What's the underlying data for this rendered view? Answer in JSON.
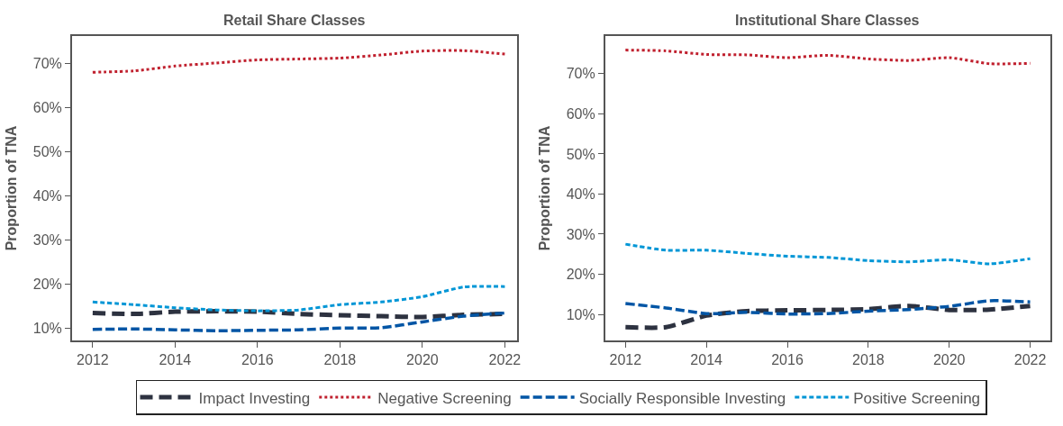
{
  "chart_data": [
    {
      "type": "line",
      "title": "Retail Share Classes",
      "ylabel": "Proportion of TNA",
      "x": [
        2012,
        2013,
        2014,
        2015,
        2016,
        2017,
        2018,
        2019,
        2020,
        2021,
        2022
      ],
      "xlim": [
        2011.5,
        2022.3
      ],
      "xticks": [
        2012,
        2014,
        2016,
        2018,
        2020,
        2022
      ],
      "ylim": [
        7.3,
        76.2
      ],
      "yticks": [
        {
          "value": 10,
          "label": "10%"
        },
        {
          "value": 20,
          "label": "20%"
        },
        {
          "value": 30,
          "label": "30%"
        },
        {
          "value": 40,
          "label": "40%"
        },
        {
          "value": 50,
          "label": "50%"
        },
        {
          "value": 60,
          "label": "60%"
        },
        {
          "value": 70,
          "label": "70%"
        }
      ],
      "legend": "bottom",
      "marker": "none",
      "series": [
        {
          "name": "Impact Investing",
          "color": "#2d3240",
          "line_style": "dashed",
          "values": [
            13.5,
            13.3,
            13.8,
            13.9,
            13.8,
            13.3,
            13.0,
            12.8,
            12.6,
            13.1,
            13.3
          ]
        },
        {
          "name": "Negative Screening",
          "color": "#c0202e",
          "line_style": "dotted",
          "values": [
            68.0,
            68.3,
            69.4,
            70.1,
            70.8,
            71.0,
            71.2,
            71.9,
            72.8,
            72.9,
            72.1
          ]
        },
        {
          "name": "Socially Responsible Investing",
          "color": "#0055a5",
          "line_style": "dashed",
          "values": [
            9.8,
            9.9,
            9.7,
            9.5,
            9.6,
            9.7,
            10.1,
            10.2,
            11.5,
            12.8,
            13.5
          ]
        },
        {
          "name": "Positive Screening",
          "color": "#0096d6",
          "line_style": "dashed",
          "values": [
            16.0,
            15.4,
            14.7,
            14.2,
            14.0,
            14.2,
            15.4,
            16.0,
            17.2,
            19.4,
            19.5
          ]
        }
      ]
    },
    {
      "type": "line",
      "title": "Institutional Share Classes",
      "ylabel": "Proportion of TNA",
      "x": [
        2012,
        2013,
        2014,
        2015,
        2016,
        2017,
        2018,
        2019,
        2020,
        2021,
        2022
      ],
      "xlim": [
        2011.5,
        2022.5
      ],
      "xticks": [
        2012,
        2014,
        2016,
        2018,
        2020,
        2022
      ],
      "ylim": [
        3.5,
        79.4
      ],
      "yticks": [
        {
          "value": 10,
          "label": "10%"
        },
        {
          "value": 20,
          "label": "20%"
        },
        {
          "value": 30,
          "label": "30%"
        },
        {
          "value": 40,
          "label": "40%"
        },
        {
          "value": 50,
          "label": "50%"
        },
        {
          "value": 60,
          "label": "60%"
        },
        {
          "value": 70,
          "label": "70%"
        }
      ],
      "legend": "bottom",
      "marker": "none",
      "series": [
        {
          "name": "Impact Investing",
          "color": "#2d3240",
          "line_style": "dashed",
          "values": [
            6.8,
            6.8,
            9.7,
            10.8,
            11.0,
            11.1,
            11.3,
            12.1,
            11.1,
            11.2,
            12.1
          ]
        },
        {
          "name": "Negative Screening",
          "color": "#c0202e",
          "line_style": "dotted",
          "values": [
            75.9,
            75.7,
            74.8,
            74.7,
            74.0,
            74.6,
            73.7,
            73.3,
            74.0,
            72.5,
            72.6
          ]
        },
        {
          "name": "Socially Responsible Investing",
          "color": "#0055a5",
          "line_style": "dashed",
          "values": [
            12.7,
            11.6,
            10.2,
            10.5,
            10.1,
            10.2,
            10.8,
            11.2,
            12.0,
            13.4,
            13.1
          ]
        },
        {
          "name": "Positive Screening",
          "color": "#0096d6",
          "line_style": "dashed",
          "values": [
            27.5,
            26.0,
            26.0,
            25.2,
            24.5,
            24.2,
            23.4,
            23.1,
            23.6,
            22.6,
            23.9
          ]
        }
      ]
    }
  ]
}
